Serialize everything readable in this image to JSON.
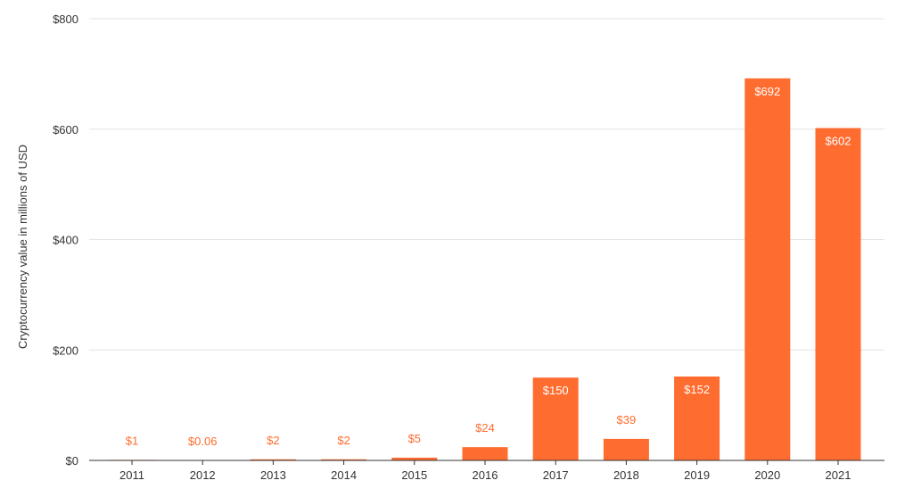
{
  "chart_data": {
    "type": "bar",
    "categories": [
      "2011",
      "2012",
      "2013",
      "2014",
      "2015",
      "2016",
      "2017",
      "2018",
      "2019",
      "2020",
      "2021"
    ],
    "values": [
      1,
      0.06,
      2,
      2,
      5,
      24,
      150,
      39,
      152,
      692,
      602
    ],
    "data_labels": [
      "$1",
      "$0.06",
      "$2",
      "$2",
      "$5",
      "$24",
      "$150",
      "$39",
      "$152",
      "$692",
      "$602"
    ],
    "ylabel": "Cryptocurrency value in millions of  USD",
    "xlabel": "",
    "ylim": [
      0,
      800
    ],
    "yticks": [
      0,
      200,
      400,
      600,
      800
    ],
    "ytick_labels": [
      "$0",
      "$200",
      "$400",
      "$600",
      "$800"
    ],
    "grid": true,
    "legend": "none",
    "colors": {
      "bar": "#ff6c2f",
      "label_outside": "#ff6c2f",
      "label_inside": "#ffffff",
      "grid": "#e3e3e3",
      "axis": "#333333"
    }
  }
}
